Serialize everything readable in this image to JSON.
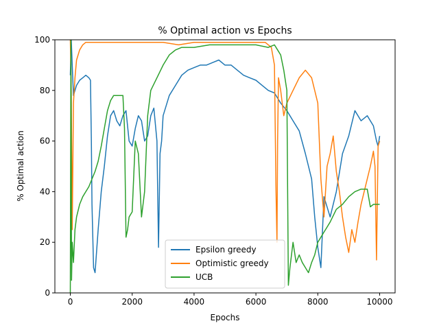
{
  "chart_data": {
    "type": "line",
    "title": "% Optimal action vs Epochs",
    "xlabel": "Epochs",
    "ylabel": "% Optimal action",
    "xlim": [
      -500,
      10500
    ],
    "ylim": [
      0,
      100
    ],
    "xticks": [
      0,
      2000,
      4000,
      6000,
      8000,
      10000
    ],
    "yticks": [
      0,
      20,
      40,
      60,
      80,
      100
    ],
    "grid": false,
    "legend_position": "lower-center",
    "series": [
      {
        "name": "Epsilon greedy",
        "color": "#1f77b4",
        "x": [
          0,
          30,
          60,
          100,
          150,
          200,
          300,
          400,
          500,
          600,
          650,
          680,
          700,
          750,
          800,
          900,
          1000,
          1100,
          1200,
          1300,
          1400,
          1500,
          1600,
          1700,
          1800,
          1900,
          2000,
          2100,
          2200,
          2300,
          2400,
          2500,
          2600,
          2700,
          2800,
          2850,
          2900,
          2950,
          3000,
          3200,
          3400,
          3600,
          3800,
          4000,
          4200,
          4400,
          4600,
          4800,
          5000,
          5200,
          5400,
          5600,
          5800,
          6000,
          6200,
          6400,
          6600,
          6800,
          7000,
          7200,
          7400,
          7600,
          7800,
          7900,
          8000,
          8100,
          8200,
          8400,
          8600,
          8800,
          9000,
          9200,
          9400,
          9600,
          9800,
          9900,
          9950,
          10000
        ],
        "y": [
          86,
          100,
          90,
          78,
          80,
          82,
          84,
          85,
          86,
          85,
          84,
          60,
          35,
          10,
          8,
          25,
          40,
          50,
          62,
          70,
          72,
          68,
          66,
          70,
          72,
          60,
          58,
          65,
          70,
          68,
          60,
          62,
          70,
          73,
          60,
          18,
          55,
          60,
          70,
          78,
          82,
          86,
          88,
          89,
          90,
          90,
          91,
          92,
          90,
          90,
          88,
          86,
          85,
          84,
          82,
          80,
          79,
          75,
          72,
          68,
          64,
          55,
          45,
          30,
          18,
          10,
          38,
          30,
          40,
          55,
          62,
          72,
          68,
          70,
          66,
          60,
          58,
          62
        ]
      },
      {
        "name": "Optimistic greedy",
        "color": "#ff7f0e",
        "x": [
          0,
          30,
          60,
          80,
          100,
          150,
          200,
          300,
          400,
          500,
          600,
          800,
          1000,
          1500,
          2000,
          2500,
          3000,
          3500,
          4000,
          4500,
          5000,
          5500,
          6000,
          6300,
          6500,
          6600,
          6650,
          6680,
          6700,
          6730,
          6800,
          6900,
          7000,
          7200,
          7400,
          7600,
          7800,
          8000,
          8100,
          8200,
          8300,
          8400,
          8500,
          8600,
          8700,
          8800,
          8900,
          9000,
          9100,
          9200,
          9300,
          9400,
          9500,
          9600,
          9700,
          9800,
          9850,
          9900,
          9950,
          10000
        ],
        "y": [
          100,
          80,
          25,
          50,
          75,
          85,
          92,
          96,
          98,
          99,
          99,
          99,
          99,
          99,
          99,
          99,
          99,
          98,
          99,
          99,
          99,
          99,
          99,
          99,
          97,
          90,
          40,
          20,
          60,
          85,
          80,
          70,
          75,
          80,
          85,
          88,
          85,
          75,
          45,
          30,
          50,
          55,
          62,
          48,
          40,
          30,
          22,
          16,
          25,
          20,
          28,
          35,
          40,
          45,
          50,
          56,
          50,
          13,
          58,
          60
        ]
      },
      {
        "name": "UCB",
        "color": "#2ca02c",
        "x": [
          0,
          20,
          40,
          60,
          100,
          150,
          200,
          300,
          400,
          500,
          600,
          700,
          800,
          900,
          1000,
          1100,
          1200,
          1300,
          1400,
          1500,
          1600,
          1700,
          1750,
          1800,
          1850,
          1900,
          2000,
          2100,
          2200,
          2300,
          2400,
          2500,
          2600,
          2800,
          3000,
          3200,
          3400,
          3600,
          3800,
          4000,
          4500,
          5000,
          5500,
          6000,
          6400,
          6600,
          6700,
          6800,
          6900,
          7000,
          7050,
          7100,
          7200,
          7300,
          7400,
          7500,
          7600,
          7700,
          7800,
          7900,
          8000,
          8100,
          8200,
          8300,
          8400,
          8600,
          8800,
          9000,
          9200,
          9400,
          9600,
          9700,
          9800,
          10000
        ],
        "y": [
          0,
          100,
          5,
          20,
          12,
          25,
          30,
          35,
          38,
          40,
          42,
          45,
          48,
          52,
          58,
          65,
          72,
          76,
          78,
          78,
          78,
          78,
          65,
          22,
          25,
          30,
          32,
          60,
          55,
          30,
          40,
          70,
          80,
          85,
          90,
          94,
          96,
          97,
          97,
          97,
          98,
          98,
          98,
          98,
          97,
          98,
          96,
          94,
          88,
          80,
          3,
          10,
          20,
          12,
          15,
          12,
          10,
          8,
          12,
          15,
          20,
          22,
          24,
          26,
          28,
          33,
          35,
          38,
          40,
          41,
          41,
          34,
          35,
          35
        ]
      }
    ]
  }
}
